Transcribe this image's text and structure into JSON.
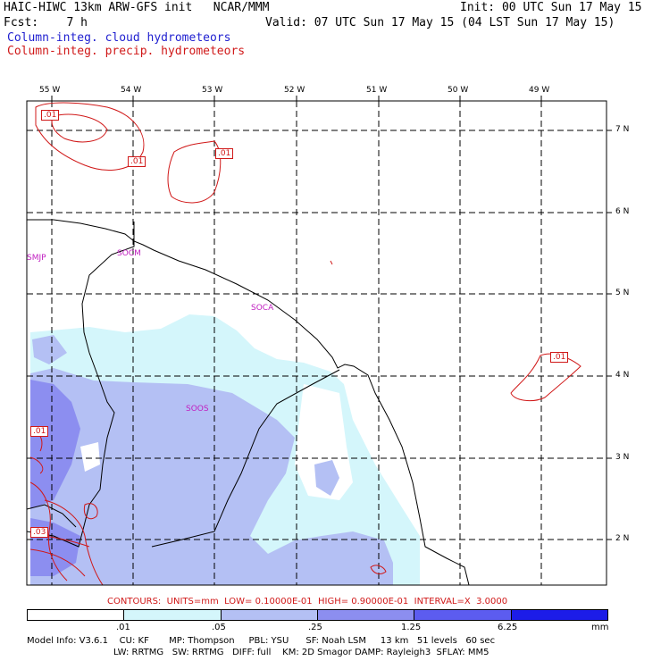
{
  "header": {
    "line1_left": "HAIC-HIWC 13km ARW-GFS init   NCAR/MMM",
    "line1_right": "Init: 00 UTC Sun 17 May 15",
    "line2_left": "Fcst:    7 h",
    "line2_right": "Valid: 07 UTC Sun 17 May 15 (04 LST Sun 17 May 15)",
    "field1": "Column-integ. cloud hydrometeors",
    "field2": "Column-integ. precip. hydrometeors"
  },
  "map": {
    "lon_labels": [
      "55 W",
      "54 W",
      "53 W",
      "52 W",
      "51 W",
      "50 W",
      "49 W"
    ],
    "lat_labels": [
      "7 N",
      "6 N",
      "5 N",
      "4 N",
      "3 N",
      "2 N"
    ],
    "lon_range": [
      -55.3,
      -48.2
    ],
    "lat_range": [
      1.45,
      7.3
    ],
    "regions": [
      "SMJP",
      "SOCM",
      "SOCA",
      "SOOS"
    ],
    "contour_labels": [
      ".01",
      ".01",
      ".01",
      ".01",
      ".01",
      ".03"
    ]
  },
  "contours_note": "CONTOURS:  UNITS=mm  LOW= 0.10000E-01  HIGH= 0.90000E-01  INTERVAL=X  3.0000",
  "colorbar": {
    "levels": [
      ".01",
      ".05",
      ".25",
      "1.25",
      "6.25"
    ],
    "unit": "mm",
    "colors": [
      "#ffffff",
      "#d4f6fb",
      "#b4c0f4",
      "#8c8ef0",
      "#5c5cf0",
      "#1c1ce8"
    ]
  },
  "footer": {
    "line1": "Model Info: V3.6.1    CU: KF       MP: Thompson     PBL: YSU      SF: Noah LSM     13 km   51 levels   60 sec",
    "line2": "LW: RRTMG   SW: RRTMG   DIFF: full    KM: 2D Smagor DAMP: Rayleigh3  SFLAY: MM5"
  }
}
